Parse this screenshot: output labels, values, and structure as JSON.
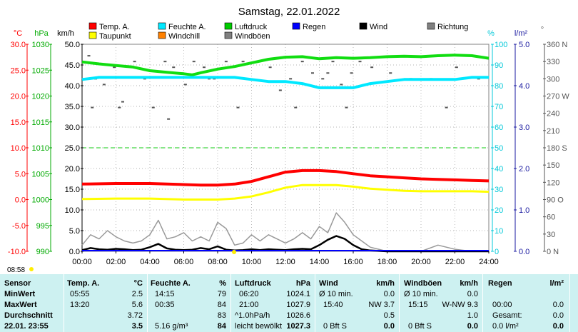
{
  "title": "Samstag, 22.01.2022",
  "axes": {
    "temp": {
      "unit": "°C",
      "ticks": [
        "30.0",
        "25.0",
        "20.0",
        "15.0",
        "10.0",
        "5.0",
        "0.0",
        "-5.0",
        "-10.0"
      ],
      "color": "#ff0000"
    },
    "press": {
      "unit": "hPa",
      "ticks": [
        "1030",
        "1025",
        "1020",
        "1015",
        "1010",
        "1005",
        "1000",
        "995",
        "990"
      ],
      "color": "#00aa00"
    },
    "wind": {
      "unit": "km/h",
      "ticks": [
        "50.0",
        "45.0",
        "40.0",
        "35.0",
        "30.0",
        "25.0",
        "20.0",
        "15.0",
        "10.0",
        "5.0",
        "0.0"
      ],
      "color": "#000000"
    },
    "hum": {
      "unit": "%",
      "ticks": [
        "100",
        "90",
        "80",
        "70",
        "60",
        "50",
        "40",
        "30",
        "20",
        "10",
        "0"
      ],
      "color": "#00c8d8"
    },
    "rain": {
      "unit": "l/m²",
      "ticks": [
        "5.0",
        "4.0",
        "3.0",
        "2.0",
        "1.0",
        "0.0"
      ],
      "color": "#1a1aa0"
    },
    "dir": {
      "unit": "°",
      "ticks": [
        "360 N",
        "330",
        "300",
        "270 W",
        "240",
        "210",
        "180 S",
        "150",
        "120",
        "90 O",
        "60",
        "30",
        "0   N"
      ],
      "color": "#555555"
    },
    "x_ticks": [
      "00:00",
      "02:00",
      "04:00",
      "06:00",
      "08:00",
      "10:00",
      "12:00",
      "14:00",
      "16:00",
      "18:00",
      "20:00",
      "22:00",
      "24:00"
    ]
  },
  "legend": [
    {
      "label": "Temp. A.",
      "color": "#ff0000"
    },
    {
      "label": "Feuchte A.",
      "color": "#00e8ff"
    },
    {
      "label": "Luftdruck",
      "color": "#00cc00"
    },
    {
      "label": "Regen",
      "color": "#0000ff"
    },
    {
      "label": "Wind",
      "color": "#000000"
    },
    {
      "label": "Richtung",
      "color": "#808080"
    },
    {
      "label": "Taupunkt",
      "color": "#ffff00"
    },
    {
      "label": "Windchill",
      "color": "#ff8000"
    },
    {
      "label": "Windböen",
      "color": "#808080"
    }
  ],
  "legend_colors": {
    "temp": "#ff0000",
    "hum": "#00e8ff",
    "press": "#11dd11",
    "dew": "#ffff00",
    "gust": "#999999",
    "wind": "#000000",
    "dir": "#555555",
    "rain": "#0000ff"
  },
  "sun": {
    "sunrise": "08:58"
  },
  "chart_data": {
    "type": "line",
    "title": "Samstag, 22.01.2022",
    "x_unit": "hours",
    "xlim": [
      0,
      24
    ],
    "series": [
      {
        "name": "Temp. A.",
        "axis": "°C",
        "x": [
          0,
          2,
          4,
          6,
          7,
          8,
          9,
          10,
          11,
          12,
          13,
          13.5,
          14,
          15,
          16,
          17,
          18,
          19,
          20,
          21,
          22,
          23,
          24
        ],
        "values": [
          3.0,
          3.1,
          3.1,
          2.9,
          2.8,
          2.8,
          3.0,
          3.5,
          4.4,
          5.3,
          5.6,
          5.6,
          5.6,
          5.4,
          5.0,
          4.6,
          4.4,
          4.2,
          4.0,
          3.9,
          3.8,
          3.7,
          3.6
        ]
      },
      {
        "name": "Taupunkt",
        "axis": "°C",
        "x": [
          0,
          2,
          4,
          6,
          7,
          8,
          9,
          10,
          11,
          12,
          13,
          14,
          15,
          16,
          17,
          18,
          19,
          20,
          21,
          22,
          23,
          24
        ],
        "values": [
          0.1,
          0.2,
          0.2,
          0.0,
          0.0,
          0.0,
          0.2,
          0.6,
          1.4,
          2.3,
          2.8,
          2.8,
          2.8,
          2.5,
          2.1,
          1.9,
          1.7,
          1.6,
          1.6,
          1.6,
          1.6,
          1.5
        ]
      },
      {
        "name": "Feuchte A.",
        "axis": "%",
        "x": [
          0,
          1,
          3,
          4,
          5,
          6,
          7,
          8,
          9,
          10,
          11,
          12,
          13,
          14,
          15,
          16,
          17,
          18,
          19,
          20,
          21,
          22,
          23,
          24
        ],
        "values": [
          83,
          84,
          84,
          84,
          84,
          84,
          84,
          84,
          84,
          83,
          82,
          82,
          81,
          79,
          79,
          79,
          81,
          82,
          83,
          83,
          83,
          83,
          84,
          84
        ]
      },
      {
        "name": "Luftdruck",
        "axis": "hPa",
        "x": [
          0,
          1,
          2,
          3,
          4,
          5,
          6,
          6.5,
          7,
          8,
          9,
          10,
          11,
          12,
          13,
          14,
          15,
          16,
          17,
          18,
          19,
          20,
          21,
          22,
          23,
          24
        ],
        "values": [
          1026.6,
          1026.2,
          1025.9,
          1025.6,
          1024.9,
          1024.6,
          1024.3,
          1024.1,
          1024.5,
          1025.2,
          1025.7,
          1026.4,
          1027.1,
          1027.5,
          1027.6,
          1027.2,
          1027.4,
          1027.3,
          1027.4,
          1027.6,
          1027.7,
          1027.6,
          1027.8,
          1027.9,
          1027.8,
          1027.3
        ]
      },
      {
        "name": "Wind",
        "axis": "km/h",
        "x": [
          0,
          0.5,
          1,
          1.5,
          2,
          2.5,
          3,
          3.5,
          4,
          4.5,
          5,
          5.5,
          6,
          6.5,
          7,
          7.5,
          8,
          8.5,
          9,
          9.5,
          10,
          10.5,
          11,
          11.5,
          12,
          12.5,
          13,
          13.5,
          14,
          14.5,
          15,
          15.5,
          16,
          16.5,
          17,
          17.5,
          18,
          19,
          20,
          21,
          22,
          23,
          24
        ],
        "values": [
          0.3,
          0.8,
          0.5,
          0.4,
          0.6,
          0.5,
          0.3,
          0.4,
          1.0,
          1.8,
          0.7,
          0.4,
          0.3,
          0.4,
          0.8,
          0.5,
          1.2,
          0.4,
          0.2,
          0.3,
          0.5,
          0.3,
          0.5,
          0.4,
          0.3,
          0.5,
          0.6,
          0.5,
          1.5,
          2.8,
          3.7,
          3.0,
          1.5,
          0.5,
          0.2,
          0.1,
          0.0,
          0.0,
          0.0,
          0.0,
          0.0,
          0.0,
          0.0
        ]
      },
      {
        "name": "Windböen",
        "axis": "km/h",
        "x": [
          0,
          0.5,
          1,
          1.5,
          2,
          2.5,
          3,
          3.5,
          4,
          4.5,
          5,
          5.5,
          6,
          6.5,
          7,
          7.5,
          8,
          8.5,
          9,
          9.5,
          10,
          10.5,
          11,
          11.5,
          12,
          12.5,
          13,
          13.5,
          14,
          14.5,
          15,
          15.5,
          16,
          16.5,
          17,
          17.5,
          18,
          19,
          20,
          21,
          22,
          23,
          24
        ],
        "values": [
          1.5,
          4.0,
          3.0,
          5.0,
          3.5,
          2.5,
          2.0,
          2.5,
          4.0,
          7.5,
          3.0,
          3.5,
          4.5,
          2.5,
          3.5,
          2.5,
          7.0,
          5.5,
          1.5,
          2.0,
          4.0,
          2.5,
          4.0,
          3.0,
          2.0,
          3.0,
          4.5,
          3.0,
          6.0,
          4.5,
          9.3,
          7.0,
          4.0,
          2.5,
          1.0,
          0.5,
          0.0,
          0.0,
          0.0,
          1.5,
          0.5,
          0.0,
          0.0
        ]
      },
      {
        "name": "Richtung",
        "axis": "°",
        "type": "scatter",
        "x": [
          0.4,
          0.8,
          1.3,
          1.9,
          2.4,
          3.1,
          3.7,
          4.2,
          4.9,
          5.4,
          6.1,
          6.6,
          7.2,
          7.8,
          8.5,
          9.2,
          9.8,
          10.4,
          11.1,
          11.7,
          12.3,
          13.0,
          13.6,
          14.2,
          14.8,
          15.3,
          15.9,
          16.4,
          17.1,
          19.4,
          20.6,
          22.1,
          23.4,
          0.6,
          2.2,
          5.1,
          7.5,
          9.5,
          12.6,
          14.5,
          15.6,
          18.2,
          21.5
        ],
        "values": [
          340,
          300,
          290,
          320,
          260,
          330,
          300,
          250,
          330,
          320,
          290,
          330,
          320,
          300,
          330,
          250,
          300,
          330,
          320,
          280,
          300,
          330,
          310,
          300,
          330,
          290,
          310,
          330,
          320,
          300,
          300,
          320,
          300,
          250,
          250,
          230,
          300,
          330,
          250,
          310,
          250,
          310,
          250
        ]
      }
    ],
    "ylim": {
      "°C": [
        -10,
        30
      ],
      "hPa": [
        990,
        1030
      ],
      "km/h": [
        0,
        50
      ],
      "%": [
        0,
        100
      ],
      "l/m²": [
        0,
        5
      ],
      "°": [
        0,
        360
      ]
    },
    "reference_lines": [
      {
        "axis": "°C",
        "value": 10.0,
        "style": "dashed"
      }
    ]
  },
  "stats": {
    "sensor": {
      "header": "Sensor",
      "rows": [
        "MinWert",
        "MaxWert",
        "Durchschnitt",
        "22.01. 23:55"
      ]
    },
    "temp": {
      "header": "Temp. A.",
      "unit": "°C",
      "rows": [
        [
          "05:55",
          "2.5"
        ],
        [
          "13:20",
          "5.6"
        ],
        [
          "",
          "3.72"
        ],
        [
          "",
          "3.5"
        ]
      ]
    },
    "hum": {
      "header": "Feuchte A.",
      "unit": "%",
      "rows": [
        [
          "14:15",
          "79"
        ],
        [
          "00:35",
          "84"
        ],
        [
          "",
          "83"
        ],
        [
          "5.16 g/m³",
          "84"
        ]
      ]
    },
    "press": {
      "header": "Luftdruck",
      "unit": "hPa",
      "rows": [
        [
          "06:20",
          "1024.1"
        ],
        [
          "21:00",
          "1027.9"
        ],
        [
          "^1.0hPa/h",
          "1026.6"
        ],
        [
          "leicht bewölkt",
          "1027.3"
        ]
      ]
    },
    "wind": {
      "header": "Wind",
      "unit": "km/h",
      "rows": [
        [
          "Ø 10 min.",
          "",
          "0.0"
        ],
        [
          "15:40",
          "NW 3.7",
          ""
        ],
        [
          "",
          "",
          "0.5"
        ],
        [
          "0 Bft S",
          "",
          "0.0"
        ]
      ]
    },
    "gust": {
      "header": "Windböen",
      "unit": "km/h",
      "rows": [
        [
          "Ø 10 min.",
          "",
          "0.0"
        ],
        [
          "15:15",
          "W-NW 9.3",
          ""
        ],
        [
          "",
          "",
          "1.0"
        ],
        [
          "0 Bft S",
          "",
          "0.0"
        ]
      ]
    },
    "rain": {
      "header": "Regen",
      "unit": "l/m²",
      "rows": [
        [
          "",
          ""
        ],
        [
          "00:00",
          "0.0"
        ],
        [
          "Gesamt:",
          "0.0"
        ],
        [
          "0.0 l/m²",
          "0.0"
        ]
      ]
    }
  }
}
